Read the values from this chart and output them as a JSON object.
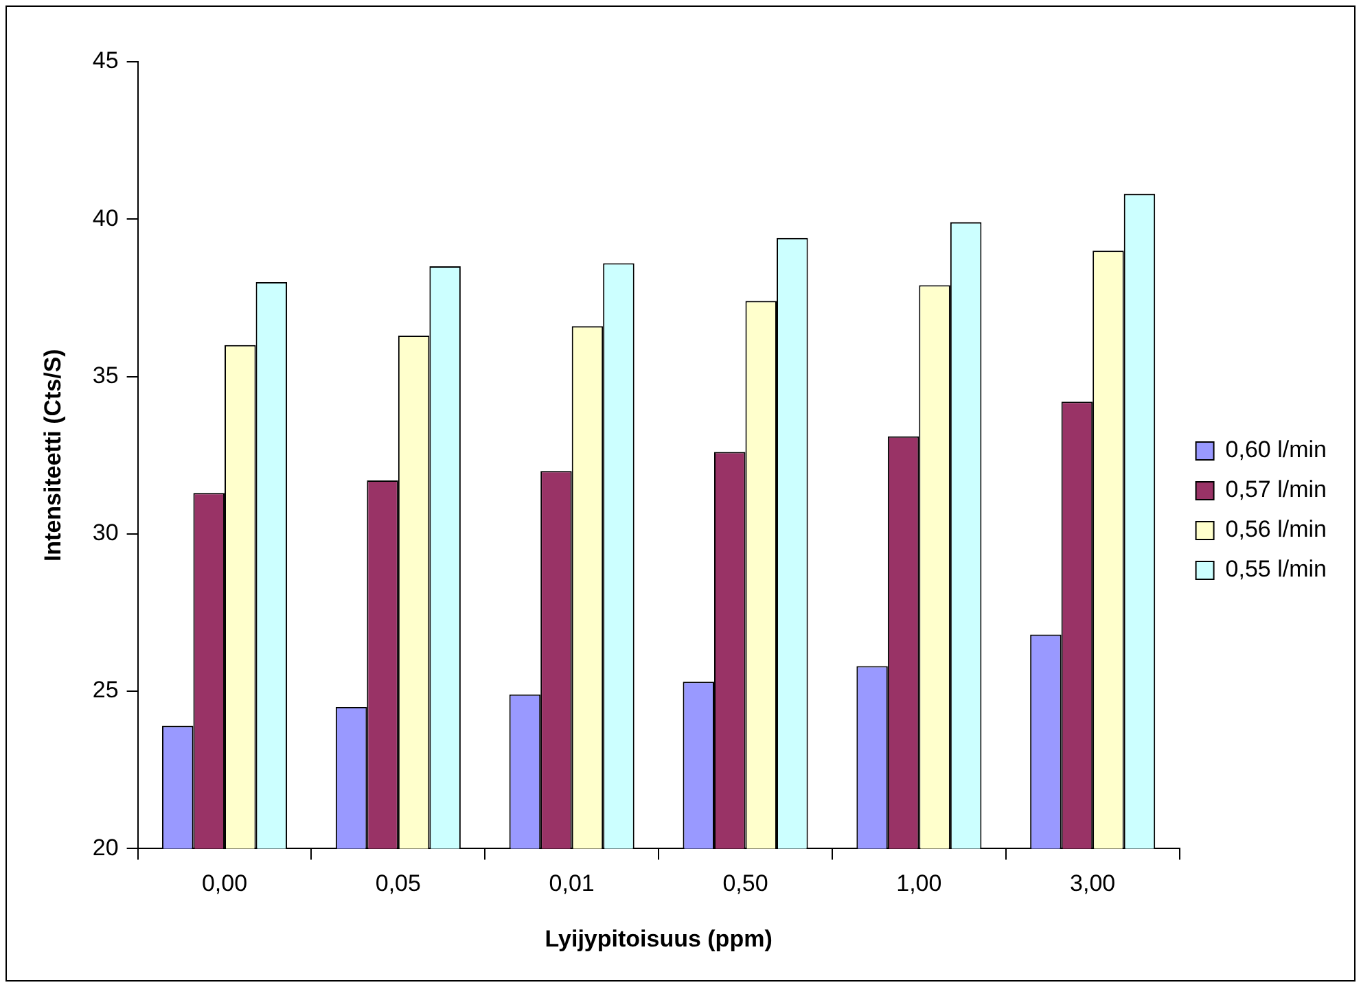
{
  "chart_data": {
    "type": "bar",
    "xlabel": "Lyijypitoisuus (ppm)",
    "ylabel": "Intensiteetti (Cts/S)",
    "categories": [
      "0,00",
      "0,05",
      "0,01",
      "0,50",
      "1,00",
      "3,00"
    ],
    "series": [
      {
        "name": "0,60 l/min",
        "color": "#9999ff",
        "values": [
          23.9,
          24.5,
          24.9,
          25.3,
          25.8,
          26.8
        ]
      },
      {
        "name": "0,57 l/min",
        "color": "#993366",
        "values": [
          31.3,
          31.7,
          32.0,
          32.6,
          33.1,
          34.2
        ]
      },
      {
        "name": "0,56 l/min",
        "color": "#ffffcc",
        "values": [
          36.0,
          36.3,
          36.6,
          37.4,
          37.9,
          39.0
        ]
      },
      {
        "name": "0,55 l/min",
        "color": "#ccffff",
        "values": [
          38.0,
          38.5,
          38.6,
          39.4,
          39.9,
          40.8
        ]
      }
    ],
    "ylim": [
      20,
      45
    ],
    "yticks": [
      20,
      25,
      30,
      35,
      40,
      45
    ],
    "grid": false,
    "legend": "right"
  }
}
